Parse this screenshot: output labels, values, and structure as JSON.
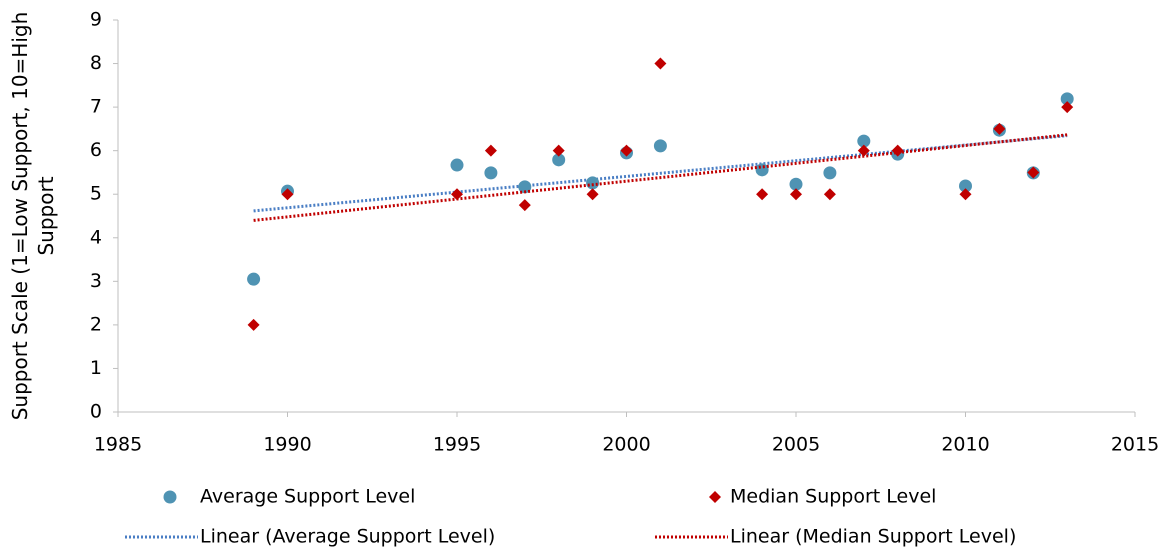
{
  "chart_data": {
    "type": "scatter",
    "ylabel": "Support Scale (1=Low Support, 10=High Support",
    "x": [
      1989,
      1990,
      1995,
      1996,
      1997,
      1998,
      1999,
      2000,
      2001,
      2004,
      2005,
      2006,
      2007,
      2008,
      2010,
      2011,
      2012,
      2013
    ],
    "series": [
      {
        "name": "Average Support Level",
        "color": "#4f93b3",
        "marker": "circle",
        "values": [
          3.05,
          5.07,
          5.67,
          5.49,
          5.17,
          5.79,
          5.26,
          5.95,
          6.11,
          5.56,
          5.23,
          5.49,
          6.22,
          5.92,
          5.19,
          6.47,
          5.49,
          7.19
        ],
        "trendline": {
          "name": "Linear (Average Support Level)",
          "color": "#4a7ec4"
        }
      },
      {
        "name": "Median Support Level",
        "color": "#c00000",
        "marker": "diamond",
        "values": [
          2,
          5,
          5,
          6,
          4.75,
          6,
          5,
          6,
          8,
          5,
          5,
          5,
          6,
          6,
          5,
          6.5,
          5.5,
          7
        ],
        "trendline": {
          "name": "Linear (Median Support Level)",
          "color": "#c00000"
        }
      }
    ],
    "xlim": [
      1985,
      2015
    ],
    "xticks": [
      1985,
      1990,
      1995,
      2000,
      2005,
      2010,
      2015
    ],
    "ylim": [
      0,
      9
    ],
    "yticks": [
      0,
      1,
      2,
      3,
      4,
      5,
      6,
      7,
      8,
      9
    ],
    "grid": false
  }
}
